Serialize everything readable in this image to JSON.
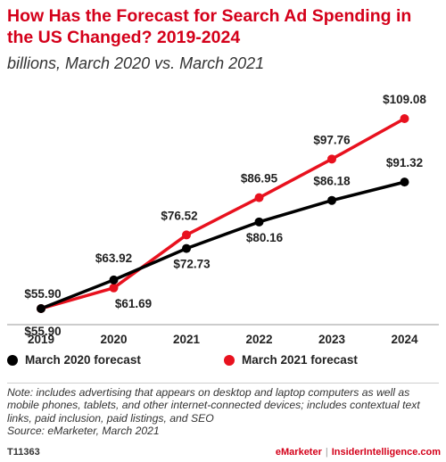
{
  "chart_data": {
    "type": "line",
    "title": "How Has the Forecast for Search Ad Spending in the US Changed? 2019-2024",
    "subtitle": "billions, March 2020 vs. March 2021",
    "categories": [
      "2019",
      "2020",
      "2021",
      "2022",
      "2023",
      "2024"
    ],
    "series": [
      {
        "name": "March 2020 forecast",
        "color": "#000000",
        "values": [
          55.9,
          63.92,
          72.73,
          80.16,
          86.18,
          91.32
        ],
        "labels": [
          "$55.90",
          "$63.92",
          "$72.73",
          "$80.16",
          "$86.18",
          "$91.32"
        ]
      },
      {
        "name": "March 2021 forecast",
        "color": "#e8111e",
        "values": [
          55.9,
          61.69,
          76.52,
          86.95,
          97.76,
          109.08
        ],
        "labels": [
          "$55.90",
          "$61.69",
          "$76.52",
          "$86.95",
          "$97.76",
          "$109.08"
        ]
      }
    ],
    "ylim": [
      40,
      115
    ],
    "grid": false,
    "legend": "bottom"
  },
  "notes": "Note: includes advertising that appears on desktop and laptop computers as well as mobile phones, tablets, and other internet-connected devices; includes contextual text links, paid inclusion, paid listings, and SEO",
  "source": "Source: eMarketer, March 2021",
  "footer": {
    "id": "T11363",
    "brand": "eMarketer",
    "separator": "|",
    "site": "InsiderIntelligence.com"
  }
}
